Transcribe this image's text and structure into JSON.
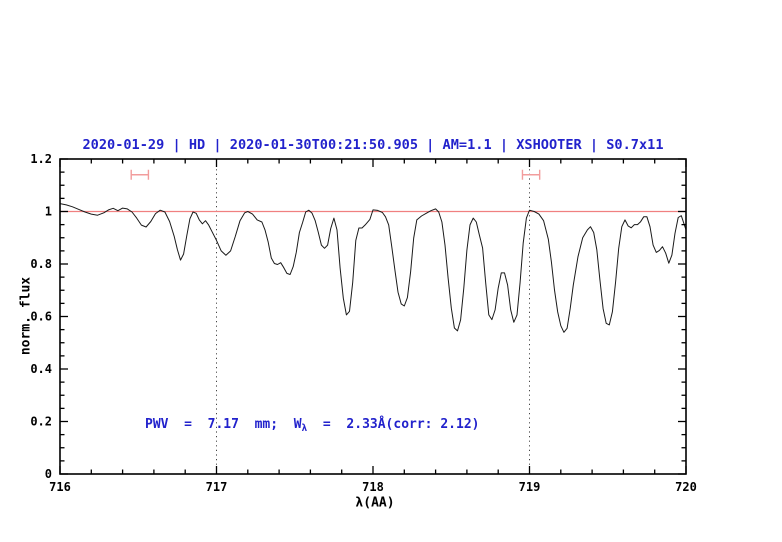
{
  "title": {
    "text": "2020-01-29 | HD | 2020-01-30T00:21:50.905 | AM=1.1 | XSHOOTER | S0.7x11",
    "color": "#2222cc"
  },
  "annotation": {
    "prefix": "PWV  =  7.17  mm;  W",
    "sub": "λ",
    "suffix": "  =  2.33Å(corr: 2.12)",
    "color": "#2222cc"
  },
  "axes": {
    "xlabel": "λ(AA)",
    "ylabel": "norm. flux"
  },
  "chart_data": {
    "type": "line",
    "title": "2020-01-29 | HD | 2020-01-30T00:21:50.905 | AM=1.1 | XSHOOTER | S0.7x11",
    "xlabel": "λ(AA)",
    "ylabel": "norm. flux",
    "xlim": [
      716,
      720
    ],
    "ylim": [
      0,
      1.2
    ],
    "grid": false,
    "x_major_ticks": [
      716,
      717,
      718,
      719,
      720
    ],
    "x_tick_labels": [
      "716",
      "717",
      "718",
      "719",
      "720"
    ],
    "x_minor_step": 0.2,
    "y_major_ticks": [
      0,
      0.2,
      0.4,
      0.6,
      0.8,
      1,
      1.2
    ],
    "y_tick_labels": [
      "0",
      "0.2",
      "0.4",
      "0.6",
      "0.8",
      "1",
      "1.2"
    ],
    "y_minor_step": 0.05,
    "dotted_vlines": {
      "x": [
        717,
        719
      ],
      "color": "#444444"
    },
    "reference_hline": {
      "y": 1.0,
      "color": "#f08080"
    },
    "window_markers": {
      "color": "#f29c9c",
      "items": [
        {
          "x_min": 716.455,
          "x_max": 716.565,
          "y": 1.14
        },
        {
          "x_min": 718.955,
          "x_max": 719.065,
          "y": 1.14
        }
      ]
    },
    "series": [
      {
        "name": "telluric-spectrum",
        "color": "#1a1a1a",
        "x": [
          716.0,
          716.04,
          716.08,
          716.12,
          716.16,
          716.2,
          716.24,
          716.28,
          716.31,
          716.34,
          716.37,
          716.4,
          716.43,
          716.46,
          716.49,
          716.52,
          716.55,
          716.58,
          716.61,
          716.64,
          716.67,
          716.7,
          716.73,
          716.75,
          716.77,
          716.79,
          716.81,
          716.83,
          716.85,
          716.87,
          716.89,
          716.91,
          716.93,
          716.95,
          716.97,
          717.0,
          717.03,
          717.06,
          717.09,
          717.12,
          717.15,
          717.18,
          717.2,
          717.23,
          717.26,
          717.29,
          717.31,
          717.33,
          717.35,
          717.37,
          717.39,
          717.41,
          717.43,
          717.45,
          717.47,
          717.49,
          717.51,
          717.53,
          717.55,
          717.57,
          717.59,
          717.61,
          717.63,
          717.65,
          717.67,
          717.69,
          717.71,
          717.73,
          717.75,
          717.77,
          717.79,
          717.81,
          717.83,
          717.85,
          717.87,
          717.89,
          717.91,
          717.93,
          717.95,
          717.98,
          718.0,
          718.03,
          718.06,
          718.08,
          718.1,
          718.12,
          718.14,
          718.16,
          718.18,
          718.2,
          718.22,
          718.24,
          718.26,
          718.28,
          718.31,
          718.34,
          718.37,
          718.4,
          718.42,
          718.44,
          718.46,
          718.48,
          718.5,
          718.52,
          718.54,
          718.56,
          718.58,
          718.6,
          718.62,
          718.64,
          718.66,
          718.68,
          718.7,
          718.72,
          718.74,
          718.76,
          718.78,
          718.8,
          718.82,
          718.84,
          718.86,
          718.88,
          718.9,
          718.92,
          718.94,
          718.96,
          718.98,
          719.0,
          719.03,
          719.06,
          719.09,
          719.12,
          719.14,
          719.16,
          719.18,
          719.2,
          719.22,
          719.24,
          719.26,
          719.28,
          719.31,
          719.34,
          719.37,
          719.39,
          719.41,
          719.43,
          719.45,
          719.47,
          719.49,
          719.51,
          719.53,
          719.55,
          719.57,
          719.59,
          719.61,
          719.63,
          719.65,
          719.67,
          719.69,
          719.71,
          719.73,
          719.75,
          719.77,
          719.79,
          719.81,
          719.83,
          719.85,
          719.87,
          719.89,
          719.91,
          719.93,
          719.95,
          719.97,
          720.0
        ],
        "flux": [
          1.03,
          1.025,
          1.018,
          1.008,
          0.998,
          0.99,
          0.986,
          0.995,
          1.006,
          1.012,
          1.003,
          1.013,
          1.01,
          0.998,
          0.975,
          0.948,
          0.941,
          0.962,
          0.992,
          1.005,
          0.998,
          0.962,
          0.905,
          0.855,
          0.815,
          0.838,
          0.908,
          0.972,
          0.998,
          0.993,
          0.968,
          0.953,
          0.965,
          0.948,
          0.925,
          0.89,
          0.85,
          0.833,
          0.85,
          0.905,
          0.965,
          0.995,
          1.0,
          0.99,
          0.968,
          0.96,
          0.93,
          0.885,
          0.823,
          0.802,
          0.798,
          0.805,
          0.786,
          0.764,
          0.76,
          0.79,
          0.845,
          0.92,
          0.958,
          0.998,
          1.005,
          0.994,
          0.966,
          0.922,
          0.872,
          0.86,
          0.872,
          0.935,
          0.975,
          0.93,
          0.785,
          0.67,
          0.606,
          0.62,
          0.73,
          0.89,
          0.937,
          0.937,
          0.949,
          0.97,
          1.006,
          1.004,
          0.996,
          0.98,
          0.949,
          0.865,
          0.777,
          0.693,
          0.648,
          0.64,
          0.672,
          0.77,
          0.899,
          0.968,
          0.983,
          0.993,
          1.003,
          1.01,
          0.998,
          0.96,
          0.872,
          0.747,
          0.632,
          0.556,
          0.545,
          0.587,
          0.708,
          0.853,
          0.949,
          0.975,
          0.96,
          0.91,
          0.861,
          0.728,
          0.606,
          0.588,
          0.625,
          0.708,
          0.766,
          0.766,
          0.72,
          0.625,
          0.578,
          0.606,
          0.73,
          0.88,
          0.975,
          1.005,
          1.0,
          0.99,
          0.965,
          0.895,
          0.808,
          0.701,
          0.617,
          0.565,
          0.54,
          0.555,
          0.63,
          0.72,
          0.828,
          0.9,
          0.93,
          0.942,
          0.92,
          0.855,
          0.74,
          0.63,
          0.574,
          0.568,
          0.618,
          0.732,
          0.86,
          0.942,
          0.968,
          0.945,
          0.938,
          0.95,
          0.95,
          0.961,
          0.98,
          0.98,
          0.942,
          0.872,
          0.844,
          0.852,
          0.866,
          0.841,
          0.803,
          0.834,
          0.917,
          0.977,
          0.984,
          0.93
        ]
      }
    ]
  }
}
